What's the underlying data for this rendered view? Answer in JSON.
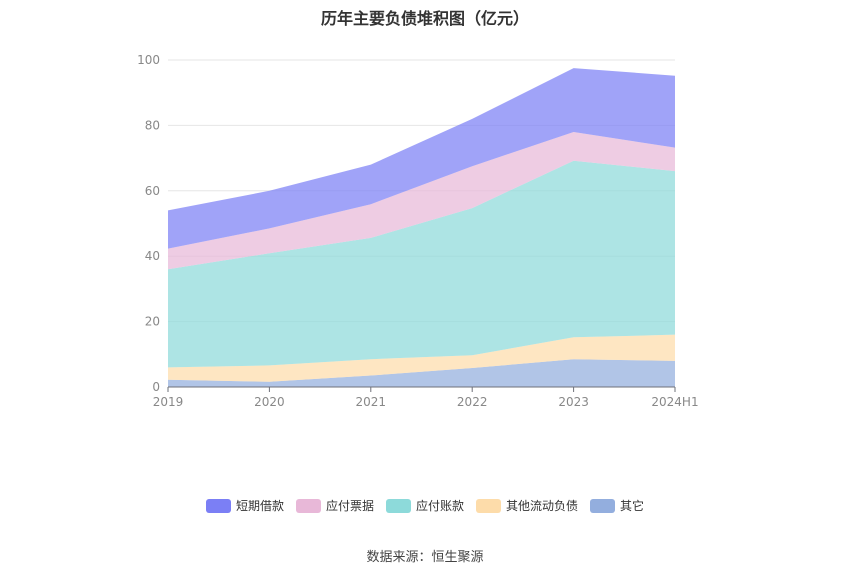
{
  "chart_data": {
    "type": "area",
    "title": "历年主要负债堆积图（亿元）",
    "categories": [
      "2019",
      "2020",
      "2021",
      "2022",
      "2023",
      "2024H1"
    ],
    "ylim": [
      0,
      100
    ],
    "yticks": [
      0,
      20,
      40,
      60,
      80,
      100
    ],
    "grid": true,
    "stacked": true,
    "legend_position": "bottom",
    "series": [
      {
        "name": "短期借款",
        "color": "#7b7ff5",
        "values": [
          11.7,
          11.5,
          12.1,
          14.5,
          19.5,
          22.0
        ]
      },
      {
        "name": "应付票据",
        "color": "#e8b8d8",
        "values": [
          6.3,
          7.6,
          10.3,
          12.8,
          8.8,
          7.2
        ]
      },
      {
        "name": "应付账款",
        "color": "#8ddada",
        "values": [
          30.0,
          34.3,
          37.1,
          45.0,
          54.0,
          50.0
        ]
      },
      {
        "name": "其他流动负债",
        "color": "#fddcaa",
        "values": [
          3.8,
          5.0,
          5.0,
          3.9,
          6.7,
          8.0
        ]
      },
      {
        "name": "其它",
        "color": "#93aede",
        "values": [
          2.2,
          1.6,
          3.5,
          5.8,
          8.5,
          8.0
        ]
      }
    ]
  },
  "source": "数据来源：恒生聚源"
}
